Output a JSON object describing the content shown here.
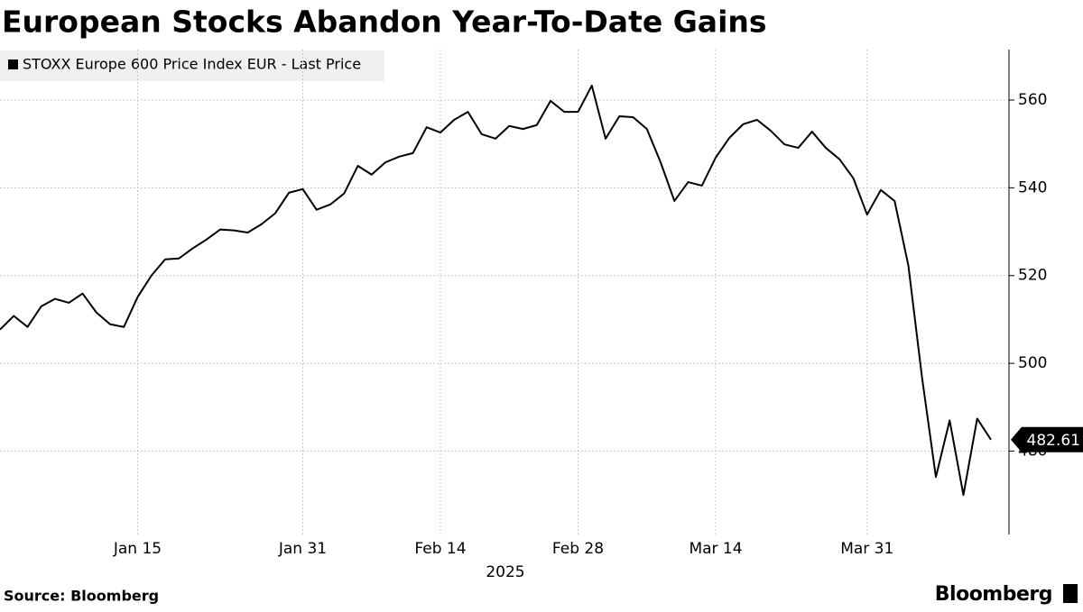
{
  "chart_data": {
    "type": "line",
    "title": "European Stocks Abandon Year-To-Date Gains",
    "xlabel": "2025",
    "source": "Source: Bloomberg",
    "brand": "Bloomberg",
    "categories": [
      null,
      null,
      null,
      null,
      null,
      null,
      null,
      null,
      null,
      null,
      "Jan 15",
      null,
      null,
      null,
      null,
      null,
      null,
      null,
      null,
      null,
      null,
      null,
      "Jan 31",
      null,
      null,
      null,
      null,
      null,
      null,
      null,
      null,
      null,
      "Feb 14",
      null,
      null,
      null,
      null,
      null,
      null,
      null,
      null,
      null,
      "Feb 28",
      null,
      null,
      null,
      null,
      null,
      null,
      null,
      null,
      null,
      "Mar 14",
      null,
      null,
      null,
      null,
      null,
      null,
      null,
      null,
      null,
      null,
      "Mar 31",
      null,
      null,
      null,
      null,
      null,
      null,
      null,
      null,
      null
    ],
    "series": [
      {
        "name": "STOXX Europe 600 Price Index EUR - Last Price",
        "color": "#000000",
        "values": [
          507.7,
          510.8,
          508.3,
          513.0,
          514.7,
          513.8,
          515.9,
          511.6,
          508.9,
          508.3,
          515.1,
          520.0,
          523.7,
          523.9,
          526.2,
          528.2,
          530.5,
          530.3,
          529.8,
          531.7,
          534.2,
          538.9,
          539.7,
          535.0,
          536.2,
          538.7,
          545.0,
          543.0,
          545.8,
          547.1,
          547.9,
          553.8,
          552.6,
          555.5,
          557.3,
          552.2,
          551.2,
          554.1,
          553.4,
          554.3,
          559.8,
          557.3,
          557.3,
          563.3,
          551.2,
          556.3,
          556.1,
          553.4,
          545.8,
          537.0,
          541.3,
          540.5,
          546.9,
          551.4,
          554.5,
          555.5,
          553.0,
          549.9,
          549.1,
          552.8,
          549.1,
          546.5,
          542.2,
          533.9,
          539.5,
          537.0,
          522.3,
          496.6,
          474.1,
          487.0,
          470.0,
          487.4,
          482.61
        ]
      }
    ],
    "ylim": [
      461,
      571.5
    ],
    "yticks": [
      480,
      500,
      520,
      540,
      560
    ],
    "grid": true
  }
}
